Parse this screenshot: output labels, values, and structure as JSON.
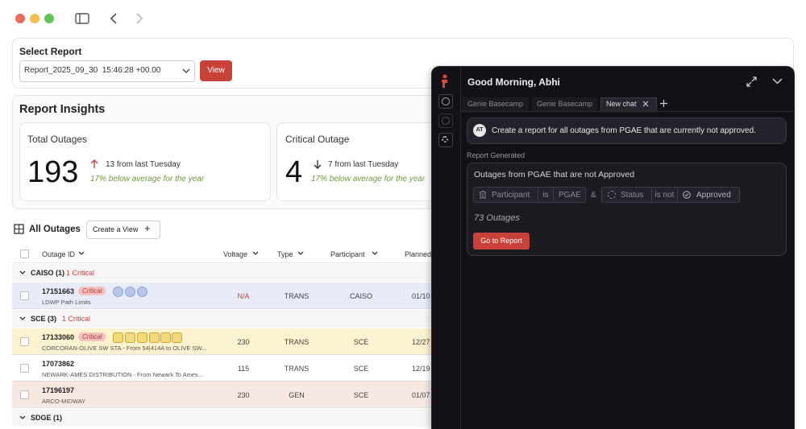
{
  "select_report": {
    "label": "Select Report",
    "selected": "Report_2025_09_30  15:46:28 +00.00",
    "button": "View"
  },
  "insights": {
    "title": "Report Insights",
    "cards": [
      {
        "title": "Total Outages",
        "value": 193,
        "change": "13 from last Tuesday",
        "note": "17% below average for the year"
      },
      {
        "title": "Critical Outage",
        "value": 4,
        "change": "7 from last Tuesday",
        "note": "17% below average for the year"
      }
    ]
  },
  "outages": {
    "title": "All Outages",
    "create_view": "Create a View",
    "columns": [
      "Outage ID",
      "Voltage",
      "Type",
      "Participant",
      "Planned"
    ],
    "groups": [
      {
        "name": "CAISO (1)",
        "critical": "1 Critical",
        "rows": [
          {
            "id": "17151663",
            "badge": "Critical",
            "desc": "LDWP Path Limits",
            "voltage": "N/A",
            "type": "TRANS",
            "participant": "CAISO",
            "planned": "01/10"
          }
        ]
      },
      {
        "name": "SCE (3)",
        "critical": "1 Critical",
        "rows": [
          {
            "id": "17133060",
            "badge": "Critical",
            "desc": "CORCORAN-OLIVE SW STA - From 54|414A to OLIVE SW...",
            "voltage": 230,
            "type": "TRANS",
            "participant": "SCE",
            "planned": "12/27"
          },
          {
            "id": "17073862",
            "desc": "NEWARK-AMES DISTRIBUTION - From Newark To Ames...",
            "voltage": 115,
            "type": "TRANS",
            "participant": "SCE",
            "planned": "12/19"
          },
          {
            "id": "17196197",
            "desc": "ARCO-MIDWAY",
            "voltage": 230,
            "type": "GEN",
            "participant": "SCE",
            "planned": "01/07"
          }
        ]
      },
      {
        "name": "SDGE (1)"
      }
    ]
  },
  "chat": {
    "greeting": "Good Morning, Abhi",
    "tabs": [
      "Genie Basecamp",
      "Genie Basecamp",
      "New chat"
    ],
    "user": {
      "initials": "AT",
      "message": "Create a report for all outages from PGAE that are currently not approved."
    },
    "status": "Report Generated",
    "report": {
      "title": "Outages from PGAE that are not Approved",
      "conditions": [
        {
          "field": "Participant",
          "op": "is",
          "value": "PGAE"
        },
        {
          "field": "Status",
          "op": "is not",
          "value": "Approved"
        }
      ],
      "joiner": "&",
      "count": "73 Outages",
      "button": "Go to Report"
    }
  }
}
